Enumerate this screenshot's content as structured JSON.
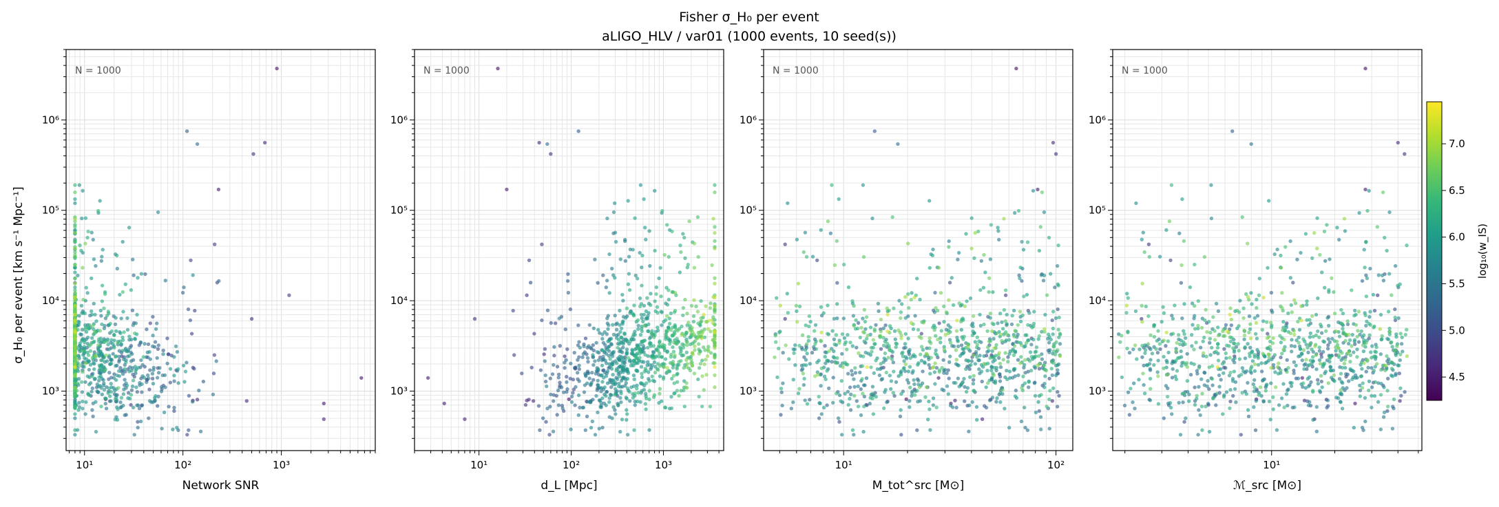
{
  "chart_data": {
    "type": "scatter",
    "title": "Fisher σ_H₀ per event",
    "subtitle": "aLIGO_HLV / var01  (1000 events, 10 seed(s))",
    "ylabel": "σ_H₀ per event [km s⁻¹ Mpc⁻¹]",
    "y_scale": "log",
    "ylim": [
      220,
      6000000
    ],
    "y_ticks": [
      {
        "value": 1000,
        "label": "10³"
      },
      {
        "value": 10000,
        "label": "10⁴"
      },
      {
        "value": 100000,
        "label": "10⁵"
      },
      {
        "value": 1000000,
        "label": "10⁶"
      }
    ],
    "colorbar": {
      "label": "log₁₀(w_IS)",
      "range": [
        4.25,
        7.45
      ],
      "ticks": [
        "4.5",
        "5.0",
        "5.5",
        "6.0",
        "6.5",
        "7.0"
      ],
      "colormap": "viridis"
    },
    "panels": [
      {
        "xlabel": "Network SNR",
        "x_scale": "log",
        "xlim": [
          6.5,
          9000
        ],
        "x_ticks": [
          {
            "value": 10,
            "label": "10¹"
          },
          {
            "value": 100,
            "label": "10²"
          },
          {
            "value": 1000,
            "label": "10³"
          }
        ],
        "annotation": "N = 1000"
      },
      {
        "xlabel": "d_L [Mpc]",
        "x_scale": "log",
        "xlim": [
          2,
          4500
        ],
        "x_ticks": [
          {
            "value": 10,
            "label": "10¹"
          },
          {
            "value": 100,
            "label": "10²"
          },
          {
            "value": 1000,
            "label": "10³"
          }
        ],
        "annotation": "N = 1000"
      },
      {
        "xlabel": "M_tot^src [M⊙]",
        "x_scale": "log",
        "xlim": [
          4.2,
          120
        ],
        "x_ticks": [
          {
            "value": 10,
            "label": "10¹"
          },
          {
            "value": 100,
            "label": "10²"
          }
        ],
        "annotation": "N = 1000"
      },
      {
        "xlabel": "ℳ_src [M⊙]",
        "x_scale": "log",
        "xlim": [
          1.75,
          52
        ],
        "x_ticks": [
          {
            "value": 10,
            "label": "10¹"
          }
        ],
        "annotation": "N = 1000"
      }
    ],
    "n_events": 1000,
    "outliers": [
      {
        "snr": 900,
        "dl": 16,
        "mtot": 65,
        "mc": 28,
        "sigma": 3700000,
        "w": 4.4
      },
      {
        "snr": 110,
        "dl": 120,
        "mtot": 14,
        "mc": 6.5,
        "sigma": 750000,
        "w": 5.2
      },
      {
        "snr": 680,
        "dl": 45,
        "mtot": 97,
        "mc": 40,
        "sigma": 560000,
        "w": 4.6
      },
      {
        "snr": 140,
        "dl": 55,
        "mtot": 18,
        "mc": 8,
        "sigma": 540000,
        "w": 5.4
      },
      {
        "snr": 520,
        "dl": 60,
        "mtot": 100,
        "mc": 43,
        "sigma": 420000,
        "w": 4.7
      },
      {
        "snr": 230,
        "dl": 20,
        "mtot": 82,
        "mc": 28,
        "sigma": 170000,
        "w": 4.5
      },
      {
        "snr": 210,
        "dl": 48,
        "mtot": 5.3,
        "mc": 2.6,
        "sigma": 42000,
        "w": 4.8
      },
      {
        "snr": 120,
        "dl": 35,
        "mtot": 7.5,
        "mc": 3.3,
        "sigma": 28000,
        "w": 4.9
      },
      {
        "snr": 1200,
        "dl": 33,
        "mtot": 58,
        "mc": 32,
        "sigma": 11500,
        "w": 4.8
      },
      {
        "snr": 500,
        "dl": 9,
        "mtot": 5.3,
        "mc": 2.4,
        "sigma": 6300,
        "w": 4.7
      },
      {
        "snr": 6500,
        "dl": 2.8,
        "mtot": 28,
        "mc": 14,
        "sigma": 1400,
        "w": 4.5
      },
      {
        "snr": 2700,
        "dl": 4.2,
        "mtot": 32,
        "mc": 25,
        "sigma": 730,
        "w": 4.5
      },
      {
        "snr": 2700,
        "dl": 7,
        "mtot": 45,
        "mc": 16,
        "sigma": 490,
        "w": 4.6
      }
    ]
  }
}
